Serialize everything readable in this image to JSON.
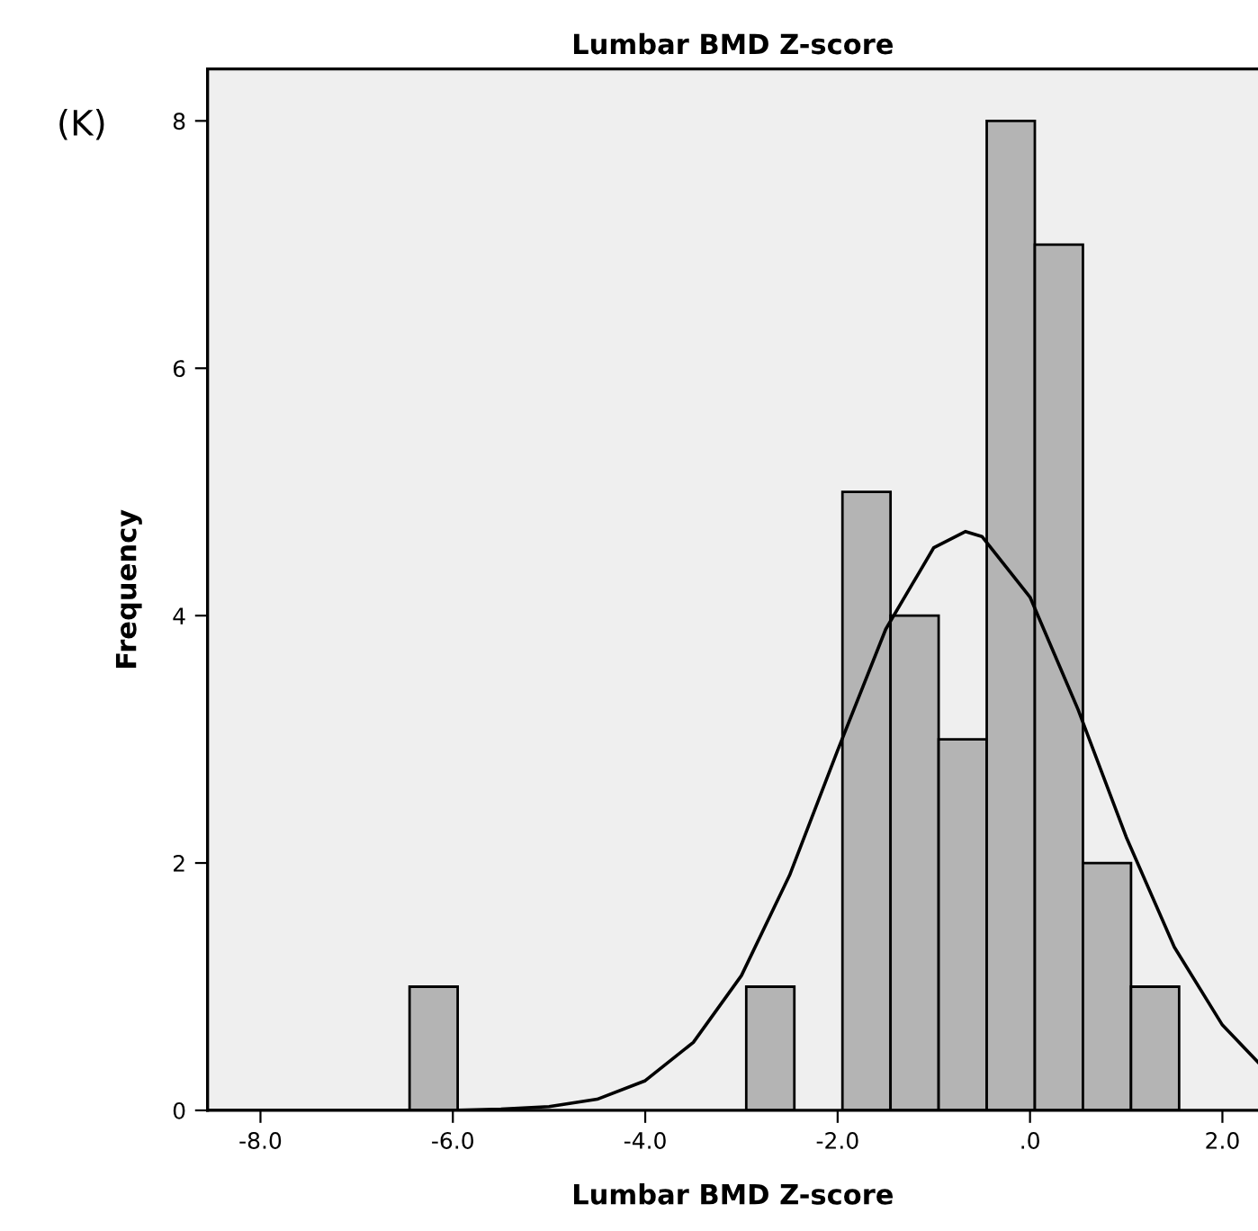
{
  "chart_data": {
    "type": "histogram",
    "title": "Lumbar BMD Z-score",
    "xlabel": "Lumbar BMD Z-score",
    "ylabel": "Frequency",
    "annotations": [
      "(K)"
    ],
    "bins": [
      -6.45,
      -5.95,
      -5.45,
      -4.95,
      -4.45,
      -3.95,
      -3.45,
      -2.95,
      -2.45,
      -1.95,
      -1.45,
      -0.95,
      -0.45,
      0.05,
      0.55,
      1.05,
      1.55
    ],
    "values": [
      1,
      0,
      0,
      0,
      0,
      0,
      0,
      1,
      0,
      5,
      4,
      3,
      8,
      7,
      2,
      1
    ],
    "color": "#b4b4b4",
    "series": [
      {
        "type": "line",
        "color": "#000000",
        "x": [
          -8.55,
          -7.5,
          -7,
          -6.5,
          -6,
          -5.5,
          -5,
          -4.5,
          -4,
          -3.5,
          -3,
          -2.5,
          -2,
          -1.5,
          -1,
          -0.67,
          -0.5,
          0,
          0.5,
          1,
          1.5,
          2,
          2.37
        ],
        "values": [
          0,
          0,
          0,
          0,
          0,
          0.01,
          0.03,
          0.09,
          0.24,
          0.55,
          1.09,
          1.9,
          2.91,
          3.89,
          4.55,
          4.68,
          4.64,
          4.15,
          3.24,
          2.21,
          1.32,
          0.69,
          0.39
        ]
      }
    ],
    "xlim": [
      -8.55,
      2.37
    ],
    "ylim": [
      0,
      8.42
    ],
    "xticks": [
      {
        "value": -8,
        "label": "-8.0"
      },
      {
        "value": -6,
        "label": "-6.0"
      },
      {
        "value": -4,
        "label": "-4.0"
      },
      {
        "value": -2,
        "label": "-2.0"
      },
      {
        "value": 0,
        "label": ".0"
      },
      {
        "value": 2,
        "label": "2.0"
      }
    ],
    "yticks": [
      0,
      2,
      4,
      6,
      8
    ],
    "grid": false,
    "legend": false
  }
}
